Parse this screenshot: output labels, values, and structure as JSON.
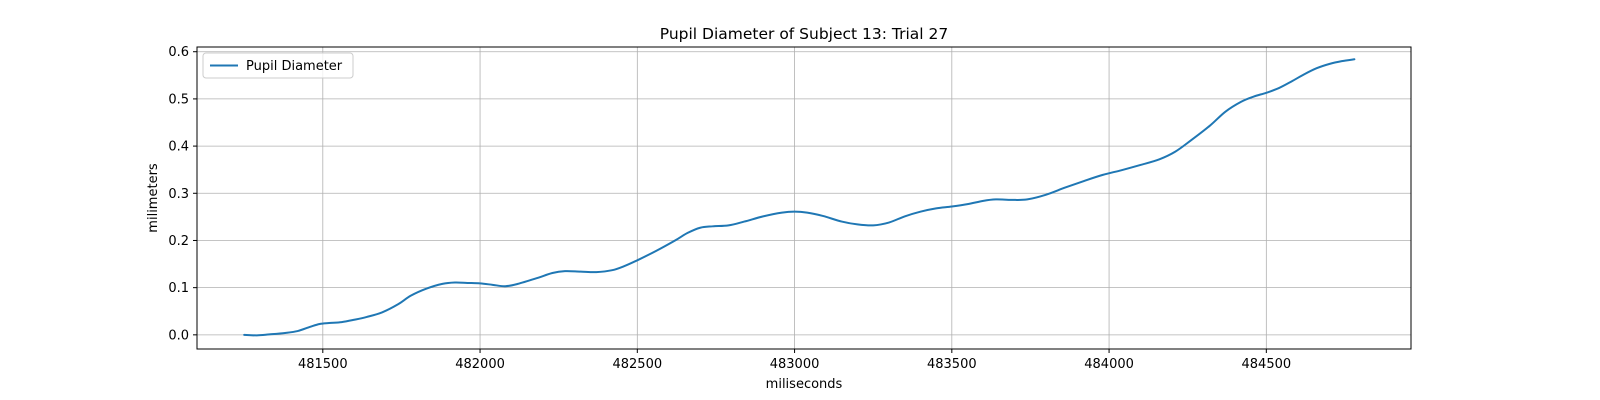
{
  "chart_data": {
    "type": "line",
    "title": "Pupil Diameter of Subject 13: Trial 27",
    "xlabel": "miliseconds",
    "ylabel": "milimeters",
    "xlim": [
      481100,
      484960
    ],
    "ylim": [
      -0.03,
      0.61
    ],
    "xticks": [
      481500,
      482000,
      482500,
      483000,
      483500,
      484000,
      484500
    ],
    "yticks": [
      0.0,
      0.1,
      0.2,
      0.3,
      0.4,
      0.5,
      0.6
    ],
    "xtick_labels": [
      "481500",
      "482000",
      "482500",
      "483000",
      "483500",
      "484000",
      "484500"
    ],
    "ytick_labels": [
      "0.0",
      "0.1",
      "0.2",
      "0.3",
      "0.4",
      "0.5",
      "0.6"
    ],
    "grid": true,
    "legend_position": "upper left",
    "series": [
      {
        "name": "Pupil Diameter",
        "color": "#1f77b4",
        "x": [
          481250,
          481290,
          481330,
          481380,
          481420,
          481460,
          481490,
          481520,
          481560,
          481600,
          481640,
          481690,
          481740,
          481780,
          481830,
          481880,
          481920,
          481960,
          482000,
          482040,
          482080,
          482120,
          482180,
          482230,
          482270,
          482320,
          482370,
          482420,
          482460,
          482500,
          482560,
          482620,
          482660,
          482700,
          482740,
          482790,
          482840,
          482900,
          482960,
          483000,
          483040,
          483090,
          483150,
          483200,
          483250,
          483300,
          483350,
          483400,
          483450,
          483500,
          483550,
          483600,
          483640,
          483690,
          483740,
          483800,
          483860,
          483920,
          483980,
          484040,
          484100,
          484160,
          484210,
          484260,
          484320,
          484370,
          484420,
          484460,
          484500,
          484540,
          484580,
          484620,
          484660,
          484700,
          484740,
          484780
        ],
        "y": [
          0.0,
          -0.001,
          0.001,
          0.004,
          0.008,
          0.017,
          0.023,
          0.025,
          0.027,
          0.032,
          0.038,
          0.048,
          0.065,
          0.083,
          0.098,
          0.108,
          0.111,
          0.11,
          0.109,
          0.106,
          0.103,
          0.108,
          0.12,
          0.131,
          0.135,
          0.134,
          0.133,
          0.137,
          0.146,
          0.158,
          0.178,
          0.2,
          0.216,
          0.227,
          0.23,
          0.232,
          0.24,
          0.251,
          0.259,
          0.261,
          0.259,
          0.252,
          0.24,
          0.234,
          0.232,
          0.238,
          0.251,
          0.261,
          0.268,
          0.272,
          0.277,
          0.284,
          0.287,
          0.286,
          0.287,
          0.297,
          0.312,
          0.326,
          0.339,
          0.349,
          0.36,
          0.372,
          0.388,
          0.412,
          0.443,
          0.473,
          0.494,
          0.505,
          0.513,
          0.523,
          0.537,
          0.552,
          0.565,
          0.574,
          0.58,
          0.584
        ]
      }
    ]
  }
}
